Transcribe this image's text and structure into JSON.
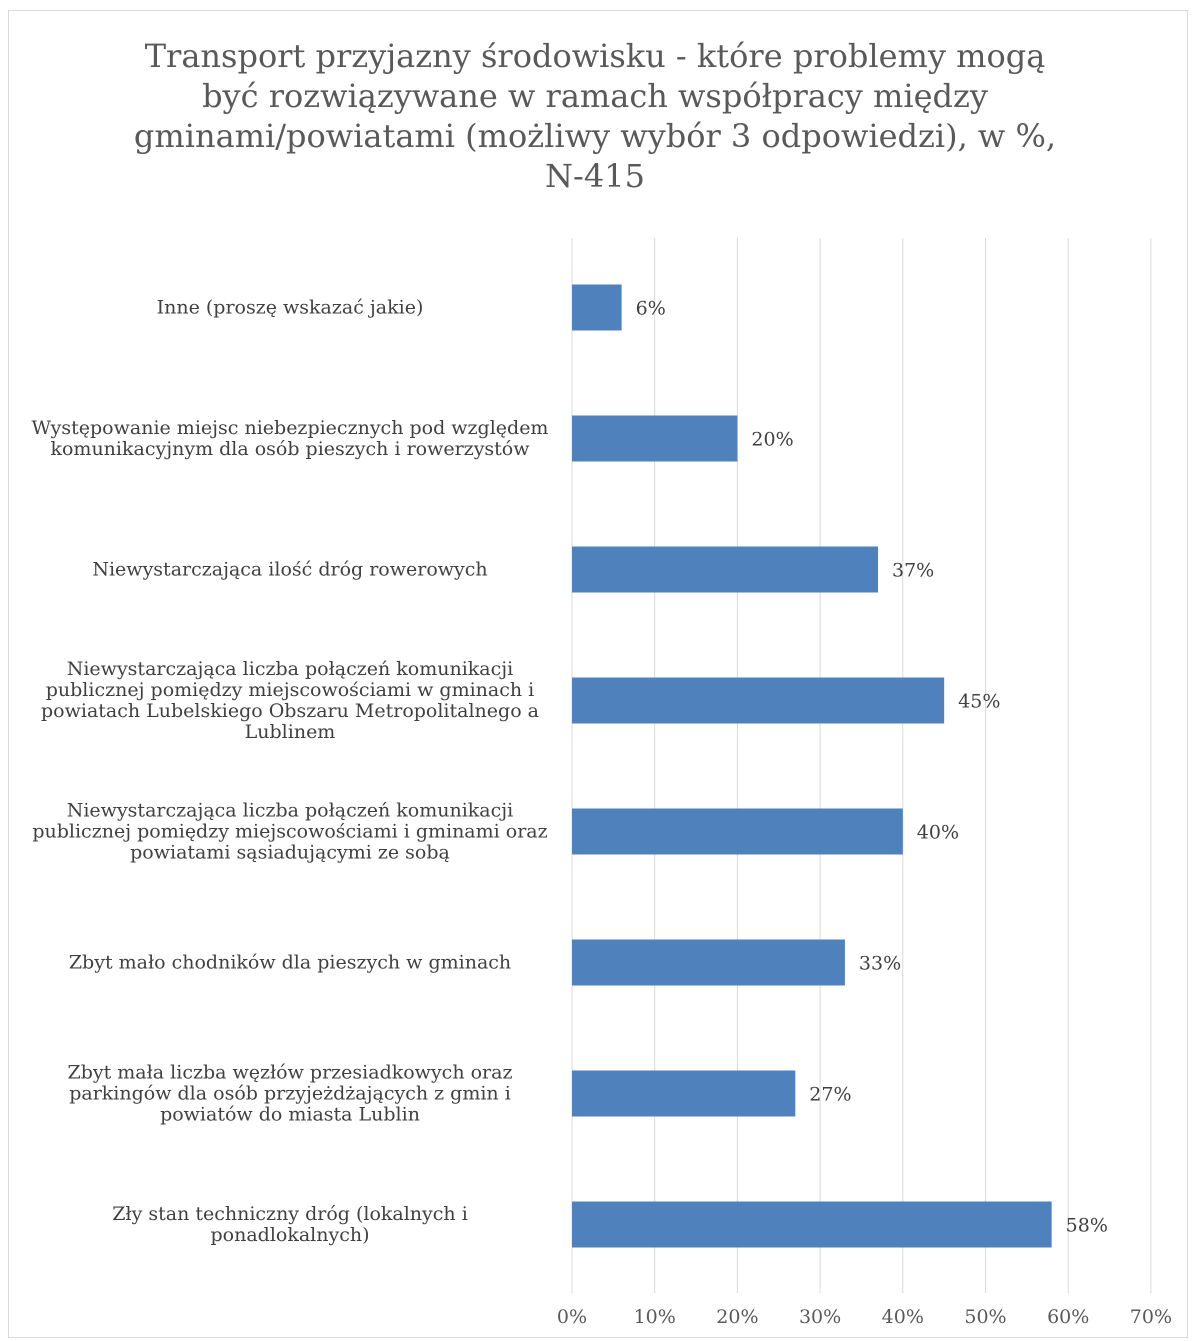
{
  "chart_data": {
    "type": "bar",
    "orientation": "horizontal",
    "title": "Transport przyjazny środowisku - które problemy mogą być rozwiązywane w ramach współpracy między gminami/powiatami (możliwy wybór 3 odpowiedzi), w %, N-415",
    "title_lines": [
      "Transport przyjazny środowisku - które problemy mogą",
      "być rozwiązywane w ramach współpracy między",
      "gminami/powiatami (możliwy wybór 3 odpowiedzi), w %,",
      "N-415"
    ],
    "categories": [
      "Inne (proszę wskazać jakie)",
      "Występowanie miejsc niebezpiecznych pod względem komunikacyjnym dla osób pieszych i rowerzystów",
      "Niewystarczająca ilość dróg rowerowych",
      "Niewystarczająca liczba połączeń komunikacji publicznej pomiędzy miejscowościami w gminach i powiatach Lubelskiego Obszaru Metropolitalnego a Lublinem",
      "Niewystarczająca liczba połączeń komunikacji publicznej pomiędzy miejscowościami i gminami oraz powiatami sąsiadującymi ze sobą",
      "Zbyt mało chodników dla pieszych w gminach",
      "Zbyt mała liczba węzłów przesiadkowych oraz parkingów dla osób przyjeżdżających z gmin i powiatów do miasta Lublin",
      "Zły stan techniczny dróg (lokalnych i ponadlokalnych)"
    ],
    "values": [
      6,
      20,
      37,
      45,
      40,
      33,
      27,
      58
    ],
    "data_labels": [
      "6%",
      "20%",
      "37%",
      "45%",
      "40%",
      "33%",
      "27%",
      "58%"
    ],
    "x_ticks": [
      "0%",
      "10%",
      "20%",
      "30%",
      "40%",
      "50%",
      "60%",
      "70%"
    ],
    "xlim": [
      0,
      70
    ],
    "unit": "%",
    "grid": "vertical",
    "legend": "none",
    "bar_color": "#4f81bd"
  }
}
